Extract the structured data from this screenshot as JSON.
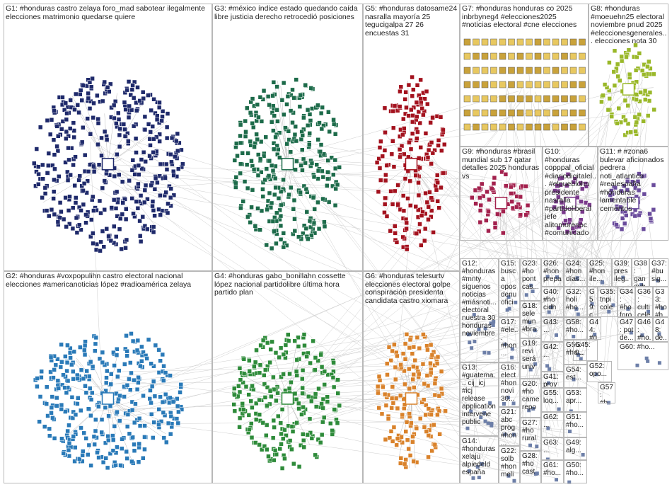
{
  "groups": [
    {
      "label": "G1: #honduras castro zelaya foro_mad sabotear ilegalmente elecciones matrimonio quedarse quiere",
      "color": "#1f2a6b"
    },
    {
      "label": "G3: #méxico índice estado quedando caída libre justicia derecho retrocedió posiciones",
      "color": "#1d6b4a"
    },
    {
      "label": "G5: #honduras datosame24 nasralla mayoría 25 tegucigalpa 27 26 encuestas 31",
      "color": "#a3121e"
    },
    {
      "label": "G7: #honduras honduras co 2025 inbrbyneg4 #elecciones2025 #noticias electoral #cne elecciones",
      "color": "#c9a23a"
    },
    {
      "label": "G8: #honduras #moeuehn25 electoral noviembre pnud 2025 #eleccionesgenerales... elecciones nota 30",
      "color": "#9ab82a"
    },
    {
      "label": "G9: #honduras #brasil mundial sub 17 qatar detalles 2025 honduras vs",
      "color": "#a3224e"
    },
    {
      "label": "G10: #honduras copppal_oficial #diariodigitalel... #elpueblohn presidente nasralla #partidoliberal jefe alitomorenoc #comunicado",
      "color": "#7a3a8c"
    },
    {
      "label": "G11: # #zona6 bulevar aficionados pedrera noti_atlantico #realespaña #honduras lamentable cementos",
      "color": "#6a4c9c"
    },
    {
      "label": "G2: #honduras #voxpopulihn castro electoral nacional elecciones #americanoticias lópez #radioamérica zelaya",
      "color": "#2a7ab8"
    },
    {
      "label": "G4: #honduras gabo_bonillahn cossette lópez nacional partidolibre última hora partido plan",
      "color": "#2e8b3a"
    },
    {
      "label": "G6: #honduras telesurtv elecciones electoral golpe conspiración presidenta candidata castro xiomara",
      "color": "#d9822b"
    },
    {
      "label": "G12: #honduras #mnty síguenos noticias #másnoti... electoral nuestra 30 honduras noviembre",
      "color": "#555555"
    },
    {
      "label": "G13: #guatema... cij_icj #icj release application intervene public",
      "color": "#555555"
    },
    {
      "label": "G14: #honduras xelaju alpiedeld españa",
      "color": "#555555"
    },
    {
      "label": "G15: busca opos denu ofici",
      "color": "#555555"
    },
    {
      "label": "G17: #ele... #hon...",
      "color": "#555555"
    },
    {
      "label": "G16: elect #hon novi 30...",
      "color": "#555555"
    },
    {
      "label": "G21: abc prog #hon...",
      "color": "#555555"
    },
    {
      "label": "G22: solb #hon meli",
      "color": "#555555"
    },
    {
      "label": "G23: #ho pont cas...",
      "color": "#555555"
    },
    {
      "label": "G18: sele mun #bra...",
      "color": "#555555"
    },
    {
      "label": "G19: revi será univ",
      "color": "#555555"
    },
    {
      "label": "G20: #ho came repo",
      "color": "#555555"
    },
    {
      "label": "G27: #ho rural",
      "color": "#555555"
    },
    {
      "label": "G28: #ho cast",
      "color": "#555555"
    },
    {
      "label": "G26: #hon prepa...",
      "color": "#555555"
    },
    {
      "label": "G40: #ho cidh",
      "color": "#555555"
    },
    {
      "label": "G43: ...",
      "color": "#555555"
    },
    {
      "label": "G42: ...",
      "color": "#555555"
    },
    {
      "label": "G41: proy #ho...",
      "color": "#555555"
    },
    {
      "label": "G55: loq...",
      "color": "#555555"
    },
    {
      "label": "G62: ...",
      "color": "#555555"
    },
    {
      "label": "G63: ...",
      "color": "#555555"
    },
    {
      "label": "G61: #ho...",
      "color": "#555555"
    },
    {
      "label": "G24: #hon días...",
      "color": "#555555"
    },
    {
      "label": "G32: holi #ho...",
      "color": "#555555"
    },
    {
      "label": "G58: #ho...",
      "color": "#555555"
    },
    {
      "label": "G56: #ho...",
      "color": "#555555"
    },
    {
      "label": "G54: est...",
      "color": "#555555"
    },
    {
      "label": "G53: apr...",
      "color": "#555555"
    },
    {
      "label": "G51: #ho...",
      "color": "#555555"
    },
    {
      "label": "G49: alg...",
      "color": "#555555"
    },
    {
      "label": "G50: #ho...",
      "color": "#555555"
    },
    {
      "label": "G25: #hon ile...",
      "color": "#555555"
    },
    {
      "label": "G35: tnpi cole",
      "color": "#555555"
    },
    {
      "label": "G39: pres ileg...",
      "color": "#555555"
    },
    {
      "label": "G38: gan dub",
      "color": "#555555"
    },
    {
      "label": "G37: #bu sig...",
      "color": "#555555"
    },
    {
      "label": "G34: #ho foro...",
      "color": "#555555"
    },
    {
      "label": "G36: culti cele...",
      "color": "#555555"
    },
    {
      "label": "G33: #ho #h...",
      "color": "#555555"
    },
    {
      "label": "G47: pot de...",
      "color": "#555555"
    },
    {
      "label": "G44: #q...",
      "color": "#555555"
    },
    {
      "label": "G45: 0...",
      "color": "#555555"
    },
    {
      "label": "G52: opo...",
      "color": "#555555"
    },
    {
      "label": "G57: #h...",
      "color": "#555555"
    },
    {
      "label": "G59: co...",
      "color": "#555555"
    },
    {
      "label": "G46: #ho...",
      "color": "#555555"
    },
    {
      "label": "G48: de...",
      "color": "#555555"
    },
    {
      "label": "G60: #ho...",
      "color": "#555555"
    }
  ]
}
